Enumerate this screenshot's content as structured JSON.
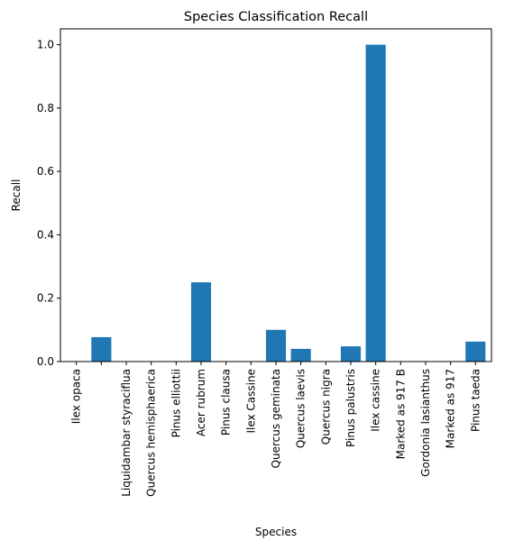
{
  "chart_data": {
    "type": "bar",
    "title": "Species Classification Recall",
    "xlabel": "Species",
    "ylabel": "Recall",
    "categories": [
      "Ilex opaca",
      "",
      "Liquidambar styraciflua",
      "Quercus hemisphaerica",
      "Pinus elliottii",
      "Acer rubrum",
      "Pinus clausa",
      "Ilex Cassine",
      "Quercus geminata",
      "Quercus laevis",
      "Quercus nigra",
      "Pinus palustris",
      "Ilex cassine",
      "Marked as 917 B",
      "Gordonia lasianthus",
      "Marked as 917",
      "Pinus taeda"
    ],
    "values": [
      0,
      0.077,
      0,
      0,
      0,
      0.25,
      0,
      0,
      0.1,
      0.04,
      0,
      0.048,
      1.0,
      0,
      0,
      0,
      0.063
    ],
    "ylim": [
      0,
      1.05
    ],
    "yticks": [
      0.0,
      0.2,
      0.4,
      0.6,
      0.8,
      1.0
    ],
    "ytick_labels": [
      "0.0",
      "0.2",
      "0.4",
      "0.6",
      "0.8",
      "1.0"
    ],
    "bar_color": "#1f77b4",
    "grid": false,
    "legend": "none"
  }
}
